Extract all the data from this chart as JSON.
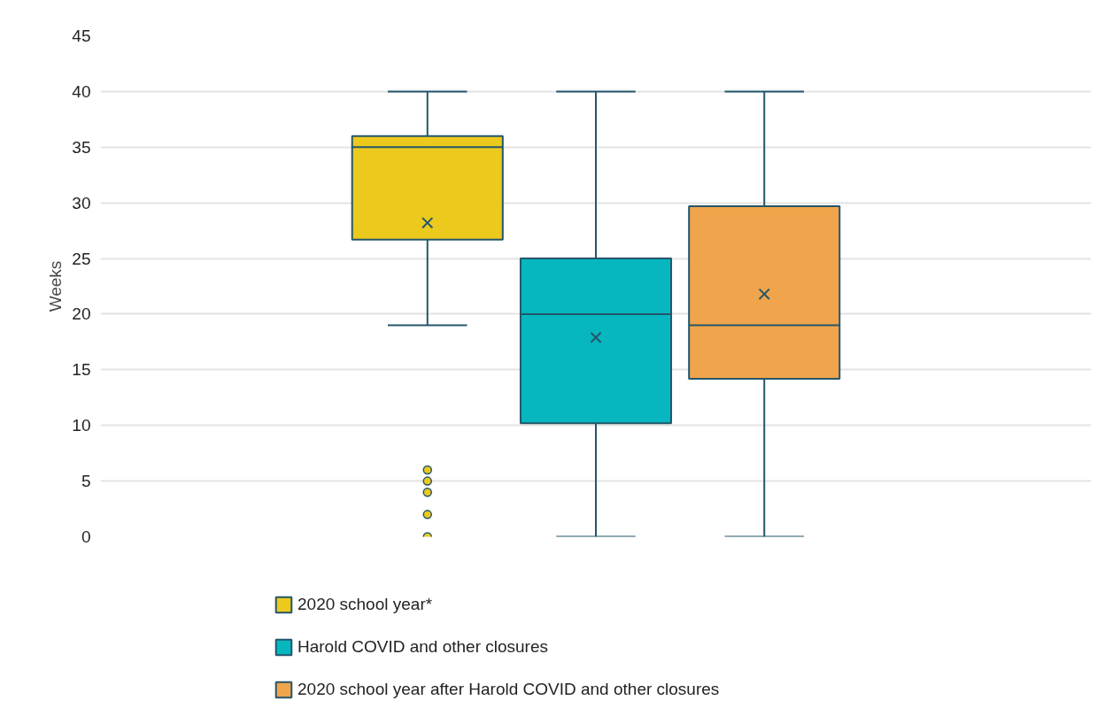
{
  "chart_data": {
    "type": "box",
    "ylabel": "Weeks",
    "categories": [
      null
    ],
    "ylim": [
      0,
      45
    ],
    "yticks": [
      0,
      5,
      10,
      15,
      20,
      25,
      30,
      35,
      40,
      45
    ],
    "grid": "y",
    "legend": "bottom",
    "tick_labels": "y",
    "marker": "circle",
    "series": [
      {
        "name": "2020 school year*",
        "color": "#ebc91d",
        "boxes": [
          {
            "low": 19,
            "q1": 26.7,
            "median": 35,
            "q3": 36,
            "high": 40,
            "mean": 28.2,
            "outliers": [
              0,
              2,
              4,
              5,
              6
            ]
          }
        ]
      },
      {
        "name": "Harold COVID and other closures",
        "color": "#06b7bf",
        "boxes": [
          {
            "low": 0,
            "q1": 10.2,
            "median": 20,
            "q3": 25,
            "high": 40,
            "mean": 17.9
          }
        ]
      },
      {
        "name": "2020 school year after Harold COVID and other closures",
        "color": "#f0a44b",
        "boxes": [
          {
            "low": 0,
            "q1": 14.2,
            "median": 19,
            "q3": 29.7,
            "high": 40,
            "mean": 21.8
          }
        ]
      }
    ]
  }
}
